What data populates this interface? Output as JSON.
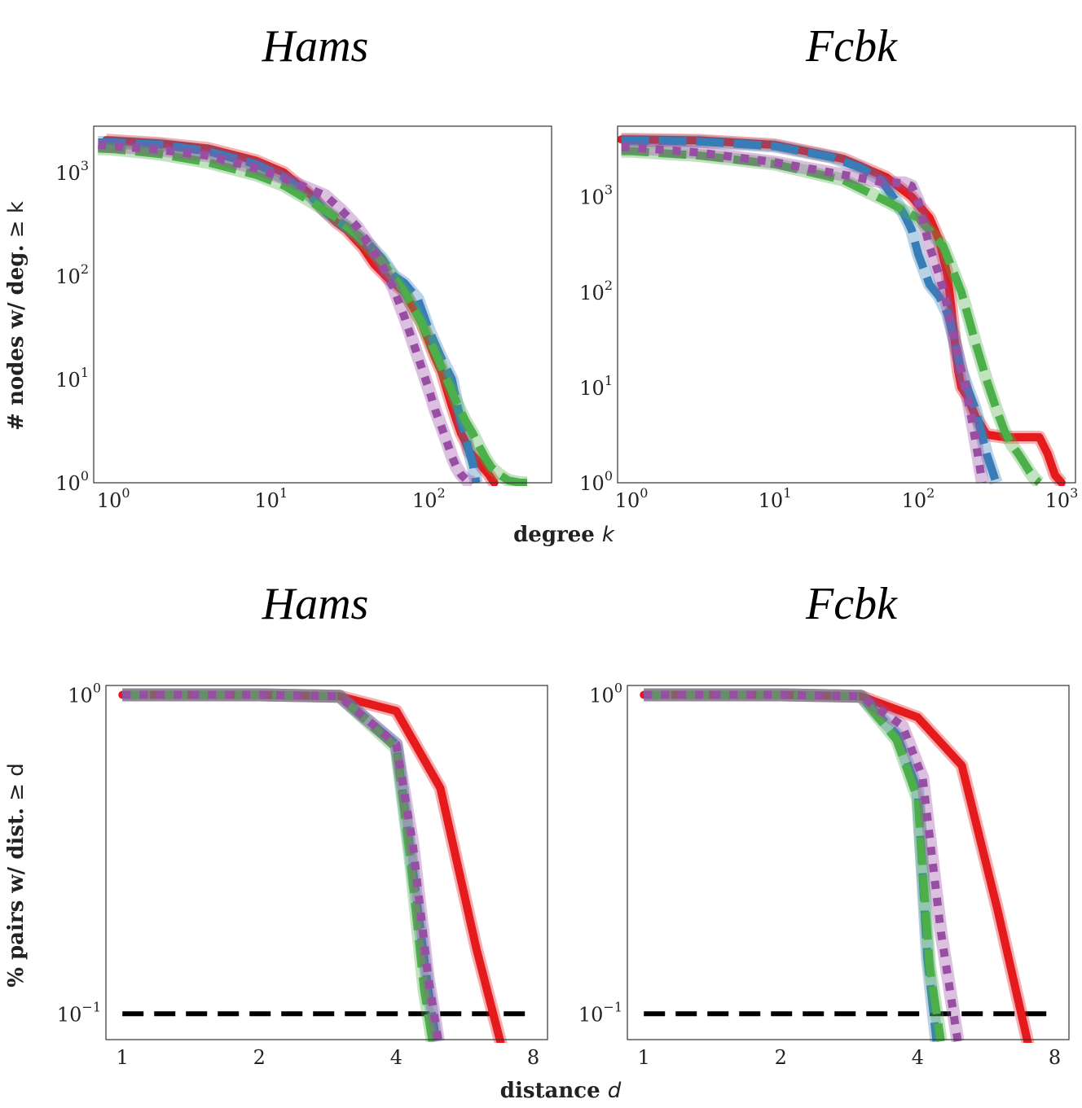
{
  "chart_data": [
    {
      "type": "line",
      "title": "Hams",
      "xlabel": "degree k",
      "ylabel": "# nodes w/ deg. ≥ k",
      "xscale": "log",
      "yscale": "log",
      "xlim": [
        0.75,
        600
      ],
      "ylim": [
        1,
        2800
      ],
      "xticks": [
        {
          "v": 1,
          "base": "10",
          "exp": "0"
        },
        {
          "v": 10,
          "base": "10",
          "exp": "1"
        },
        {
          "v": 100,
          "base": "10",
          "exp": "2"
        }
      ],
      "yticks": [
        {
          "v": 1,
          "base": "10",
          "exp": "0"
        },
        {
          "v": 10,
          "base": "10",
          "exp": "1"
        },
        {
          "v": 100,
          "base": "10",
          "exp": "2"
        },
        {
          "v": 1000,
          "base": "10",
          "exp": "3"
        }
      ],
      "grid": false,
      "series": [
        {
          "color": "#e41a1c",
          "dash": "solid",
          "x": [
            0.9,
            1,
            2,
            4,
            8,
            12,
            18,
            22,
            26,
            30,
            38,
            45,
            55,
            70,
            90,
            110,
            120,
            130,
            140,
            150,
            160,
            170,
            180,
            200,
            220,
            240,
            260
          ],
          "y": [
            2050,
            2030,
            1900,
            1700,
            1300,
            1000,
            600,
            420,
            330,
            280,
            190,
            130,
            95,
            70,
            35,
            16,
            12,
            8,
            5.5,
            4,
            3,
            2.5,
            2,
            1.7,
            1.4,
            1.2,
            1
          ]
        },
        {
          "color": "#377eb8",
          "dash": "dash",
          "x": [
            0.8,
            1,
            2,
            4,
            8,
            12,
            18,
            22,
            28,
            35,
            42,
            50,
            60,
            70,
            85,
            100,
            120,
            140,
            150,
            160,
            170,
            180,
            190,
            200
          ],
          "y": [
            1950,
            1950,
            1850,
            1600,
            1200,
            900,
            580,
            420,
            320,
            250,
            200,
            150,
            100,
            85,
            60,
            30,
            16,
            10,
            6,
            4,
            3,
            2,
            1.5,
            1
          ]
        },
        {
          "color": "#4daf4a",
          "dash": "dash",
          "x": [
            0.8,
            1,
            2,
            4,
            8,
            12,
            18,
            25,
            35,
            50,
            70,
            90,
            110,
            130,
            150,
            170,
            190,
            210,
            230,
            250,
            280,
            320,
            380,
            420
          ],
          "y": [
            1700,
            1680,
            1500,
            1250,
            950,
            750,
            520,
            380,
            250,
            140,
            70,
            35,
            18,
            10,
            6,
            4,
            3,
            2.2,
            1.7,
            1.4,
            1.2,
            1.05,
            1,
            1
          ]
        },
        {
          "color": "#984ea3",
          "dash": "dot",
          "x": [
            0.8,
            1,
            2,
            4,
            8,
            12,
            18,
            22,
            28,
            35,
            42,
            50,
            60,
            70,
            80,
            90,
            100,
            110,
            120,
            130,
            140,
            150,
            160,
            175,
            190
          ],
          "y": [
            1850,
            1800,
            1650,
            1450,
            1100,
            880,
            680,
            600,
            430,
            300,
            200,
            130,
            75,
            40,
            22,
            13,
            8,
            5,
            3.5,
            2.5,
            1.8,
            1.4,
            1.2,
            1.05,
            1
          ]
        }
      ]
    },
    {
      "type": "line",
      "title": "Fcbk",
      "xlabel": "degree k",
      "ylabel": "",
      "xscale": "log",
      "yscale": "log",
      "xlim": [
        0.8,
        1250
      ],
      "ylim": [
        1,
        5500
      ],
      "xticks": [
        {
          "v": 1,
          "base": "10",
          "exp": "0"
        },
        {
          "v": 10,
          "base": "10",
          "exp": "1"
        },
        {
          "v": 100,
          "base": "10",
          "exp": "2"
        },
        {
          "v": 1000,
          "base": "10",
          "exp": "3"
        }
      ],
      "yticks": [
        {
          "v": 1,
          "base": "10",
          "exp": "0"
        },
        {
          "v": 10,
          "base": "10",
          "exp": "1"
        },
        {
          "v": 100,
          "base": "10",
          "exp": "2"
        },
        {
          "v": 1000,
          "base": "10",
          "exp": "3"
        }
      ],
      "grid": false,
      "series": [
        {
          "color": "#e41a1c",
          "dash": "solid",
          "x": [
            0.85,
            1,
            3,
            10,
            30,
            60,
            90,
            120,
            140,
            160,
            170,
            180,
            190,
            200,
            220,
            250,
            300,
            400,
            500,
            700,
            800,
            900,
            1000
          ],
          "y": [
            4000,
            4000,
            3900,
            3500,
            2500,
            1600,
            1000,
            600,
            350,
            150,
            70,
            30,
            15,
            10,
            8,
            5,
            3.2,
            3,
            3,
            3,
            2,
            1.2,
            1
          ]
        },
        {
          "color": "#377eb8",
          "dash": "dash",
          "x": [
            0.85,
            1,
            3,
            10,
            25,
            40,
            55,
            70,
            80,
            90,
            100,
            120,
            140,
            160,
            180,
            200,
            220,
            250,
            280,
            300,
            320,
            350
          ],
          "y": [
            3900,
            3900,
            3800,
            3400,
            2600,
            2000,
            1500,
            900,
            650,
            450,
            250,
            120,
            90,
            60,
            30,
            15,
            10,
            6,
            3,
            2,
            1.5,
            1
          ]
        },
        {
          "color": "#4daf4a",
          "dash": "dash",
          "x": [
            0.85,
            1,
            3,
            10,
            30,
            60,
            100,
            150,
            200,
            250,
            300,
            350,
            400,
            450,
            500,
            550,
            600,
            650,
            700
          ],
          "y": [
            3000,
            3000,
            2700,
            2200,
            1500,
            900,
            600,
            300,
            100,
            30,
            12,
            6,
            3.5,
            2.5,
            2,
            1.6,
            1.3,
            1.1,
            1
          ]
        },
        {
          "color": "#984ea3",
          "dash": "dot",
          "x": [
            0.85,
            1,
            3,
            10,
            30,
            60,
            80,
            90,
            100,
            110,
            120,
            140,
            160,
            180,
            200,
            220,
            240,
            260,
            270,
            280
          ],
          "y": [
            3300,
            3300,
            2900,
            2300,
            1700,
            1400,
            1400,
            1300,
            900,
            500,
            300,
            150,
            70,
            30,
            15,
            8,
            4,
            2,
            1.4,
            1
          ]
        }
      ]
    },
    {
      "type": "line",
      "title": "Hams",
      "xlabel": "distance d",
      "ylabel": "% pairs w/ dist. ≥ d",
      "xscale": "log",
      "yscale": "log",
      "xlim": [
        0.92,
        8.6
      ],
      "ylim": [
        0.083,
        1.07
      ],
      "xticks": [
        {
          "v": 1,
          "label": "1"
        },
        {
          "v": 2,
          "label": "2"
        },
        {
          "v": 4,
          "label": "4"
        },
        {
          "v": 8,
          "label": "8"
        }
      ],
      "yticks": [
        {
          "v": 0.1,
          "base": "10",
          "exp": "−1"
        },
        {
          "v": 1,
          "base": "10",
          "exp": "0"
        }
      ],
      "grid": false,
      "reference_line": {
        "y": 0.1,
        "x": [
          1,
          8
        ]
      },
      "series": [
        {
          "color": "#e41a1c",
          "dash": "solid",
          "x": [
            1,
            2,
            3,
            4,
            5,
            6,
            6.8
          ],
          "y": [
            1,
            1,
            0.99,
            0.89,
            0.51,
            0.16,
            0.08
          ]
        },
        {
          "color": "#377eb8",
          "dash": "dash",
          "x": [
            1,
            2,
            3,
            4,
            4.3,
            4.7,
            4.9
          ],
          "y": [
            1,
            1,
            0.99,
            0.7,
            0.32,
            0.12,
            0.082
          ]
        },
        {
          "color": "#4daf4a",
          "dash": "dash",
          "x": [
            1,
            2,
            3,
            4,
            4.3,
            4.6,
            4.8
          ],
          "y": [
            1,
            1,
            0.99,
            0.68,
            0.3,
            0.12,
            0.082
          ]
        },
        {
          "color": "#984ea3",
          "dash": "dot",
          "x": [
            1,
            2,
            3,
            4,
            4.35,
            4.7,
            4.95
          ],
          "y": [
            1,
            1,
            0.99,
            0.7,
            0.34,
            0.13,
            0.082
          ]
        }
      ]
    },
    {
      "type": "line",
      "title": "Fcbk",
      "xlabel": "distance d",
      "ylabel": "",
      "xscale": "log",
      "yscale": "log",
      "xlim": [
        0.92,
        8.6
      ],
      "ylim": [
        0.083,
        1.07
      ],
      "xticks": [
        {
          "v": 1,
          "label": "1"
        },
        {
          "v": 2,
          "label": "2"
        },
        {
          "v": 4,
          "label": "4"
        },
        {
          "v": 8,
          "label": "8"
        }
      ],
      "yticks": [
        {
          "v": 0.1,
          "base": "10",
          "exp": "−1"
        },
        {
          "v": 1,
          "base": "10",
          "exp": "0"
        }
      ],
      "grid": false,
      "reference_line": {
        "y": 0.1,
        "x": [
          1,
          8
        ]
      },
      "series": [
        {
          "color": "#e41a1c",
          "dash": "solid",
          "x": [
            1,
            2,
            3,
            4,
            5,
            6,
            7
          ],
          "y": [
            1,
            1,
            0.99,
            0.85,
            0.6,
            0.21,
            0.08
          ]
        },
        {
          "color": "#377eb8",
          "dash": "dash",
          "x": [
            1,
            2,
            3,
            3.6,
            4,
            4.2,
            4.4
          ],
          "y": [
            1,
            1,
            0.99,
            0.75,
            0.5,
            0.15,
            0.082
          ]
        },
        {
          "color": "#4daf4a",
          "dash": "dash",
          "x": [
            1,
            2,
            3,
            3.6,
            4,
            4.25,
            4.5
          ],
          "y": [
            1,
            1,
            0.99,
            0.72,
            0.47,
            0.14,
            0.082
          ]
        },
        {
          "color": "#984ea3",
          "dash": "dot",
          "x": [
            1,
            2,
            3,
            3.7,
            4.1,
            4.5,
            4.9
          ],
          "y": [
            1,
            1,
            0.99,
            0.8,
            0.55,
            0.18,
            0.082
          ]
        }
      ]
    }
  ],
  "shared_labels": {
    "degree_xlabel_main": "degree ",
    "degree_xlabel_var": "k",
    "degree_ylabel_main": "# nodes w/ deg.",
    "degree_ylabel_var": " ≥ k",
    "distance_xlabel_main": "distance ",
    "distance_xlabel_var": "d",
    "distance_ylabel_main": "% pairs w/ dist.",
    "distance_ylabel_var": " ≥ d"
  }
}
